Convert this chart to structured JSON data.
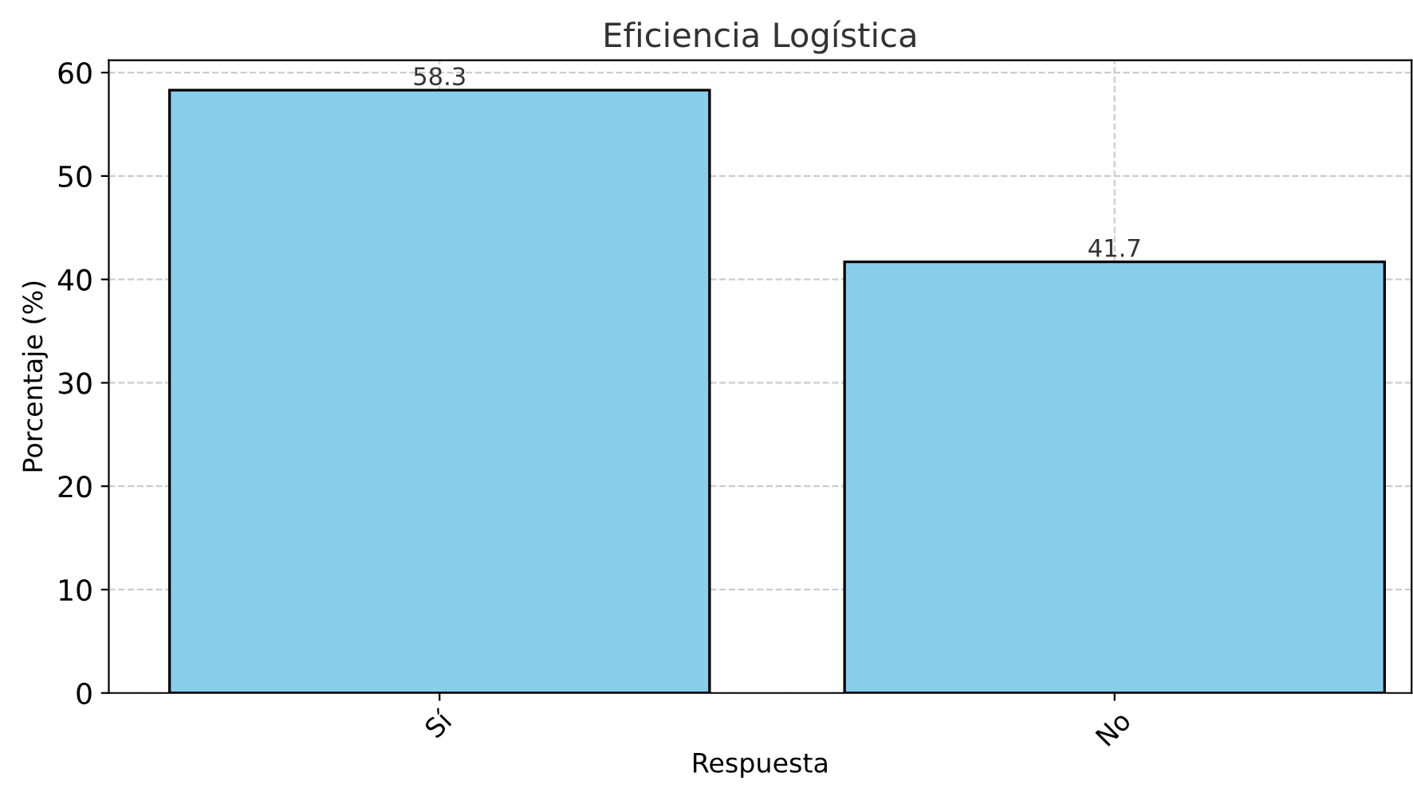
{
  "chart_data": {
    "type": "bar",
    "title": "Eficiencia Logística",
    "xlabel": "Respuesta",
    "ylabel": "Porcentaje (%)",
    "categories": [
      "Sí",
      "No"
    ],
    "values": [
      58.3,
      41.7
    ],
    "color": "#87ceeb",
    "ylim": [
      0,
      61.2
    ],
    "yticks": [
      0,
      10,
      20,
      30,
      40,
      50,
      60
    ],
    "data_labels": true,
    "grid": true
  }
}
